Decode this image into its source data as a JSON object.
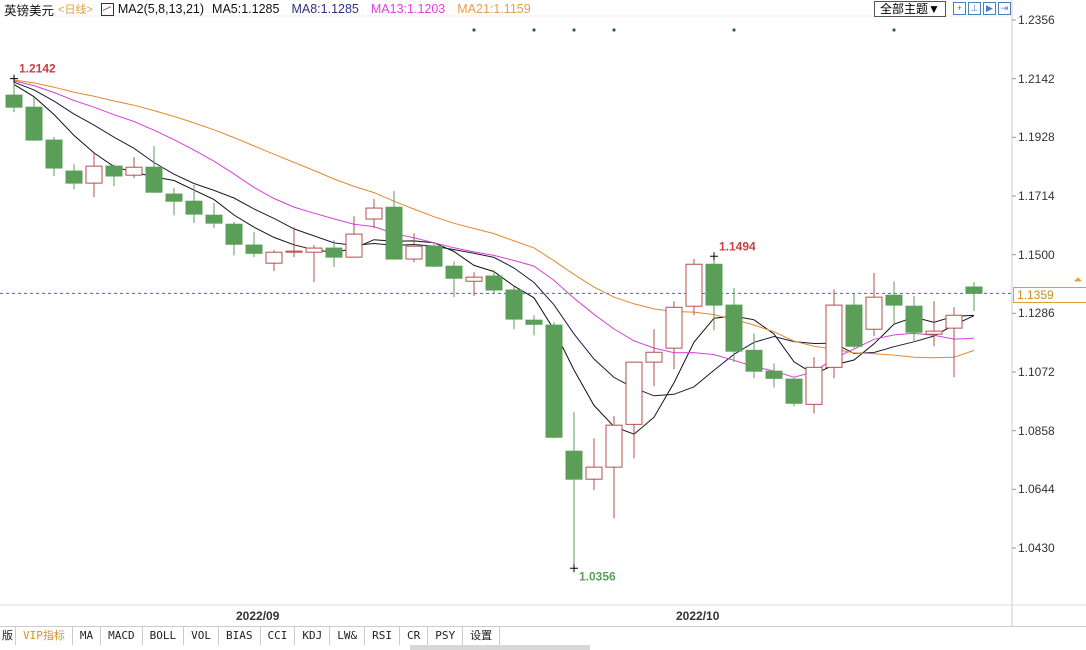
{
  "header": {
    "symbol": "英镑美元",
    "period": "<日线>",
    "indicator_name": "MA2(5,8,13,21)",
    "ma5": "MA5:1.1285",
    "ma8": "MA8:1.1285",
    "ma13": "MA13:1.1203",
    "ma21": "MA21:1.1159"
  },
  "toolbar": {
    "theme_select": "全部主题▼",
    "buttons": [
      "crosshair-icon",
      "zoom-in-icon",
      "step-icon",
      "jump-end-icon"
    ]
  },
  "colors": {
    "up": "#b0504c",
    "down": "#5a9e58",
    "ma5": "#111111",
    "ma8": "#1a1a40",
    "ma13": "#d840d8",
    "ma21": "#e08a30",
    "current_line": "#2a7a9a",
    "high_label": "#c84040",
    "low_label": "#5a9e58"
  },
  "y_axis": {
    "range": [
      1.043,
      1.2356
    ],
    "ticks": [
      "1.2356",
      "1.2142",
      "1.1928",
      "1.1714",
      "1.1500",
      "1.1286",
      "1.1072",
      "1.0858",
      "1.0644",
      "1.0430"
    ]
  },
  "current_price": "1.1359",
  "annotations": {
    "high_1": "1.2142",
    "high_2": "1.1494",
    "low_1": "1.0356"
  },
  "x_axis": [
    {
      "label": "2022/09",
      "index": 12
    },
    {
      "label": "2022/10",
      "index": 34
    }
  ],
  "event_markers": [
    23,
    26,
    28,
    30,
    36,
    44
  ],
  "chart_data": {
    "type": "candlestick",
    "title": "英镑美元 日线",
    "ma_periods": [
      5,
      8,
      13,
      21
    ],
    "ohlc": [
      [
        1.2082,
        1.2038,
        1.2142,
        1.202
      ],
      [
        1.2038,
        1.1918,
        1.2075,
        1.1915
      ],
      [
        1.1918,
        1.1816,
        1.1929,
        1.1787
      ],
      [
        1.1805,
        1.1761,
        1.183,
        1.1739
      ],
      [
        1.1761,
        1.1823,
        1.1871,
        1.171
      ],
      [
        1.1823,
        1.1787,
        1.183,
        1.175
      ],
      [
        1.179,
        1.1819,
        1.1856,
        1.1779
      ],
      [
        1.1819,
        1.1728,
        1.1896,
        1.1725
      ],
      [
        1.1721,
        1.1695,
        1.1743,
        1.1644
      ],
      [
        1.1695,
        1.1648,
        1.1754,
        1.1615
      ],
      [
        1.1644,
        1.1615,
        1.1688,
        1.1597
      ],
      [
        1.1611,
        1.1538,
        1.162,
        1.1498
      ],
      [
        1.1535,
        1.1505,
        1.1582,
        1.1491
      ],
      [
        1.1469,
        1.1509,
        1.1516,
        1.144
      ],
      [
        1.1509,
        1.1513,
        1.16,
        1.1491
      ],
      [
        1.1509,
        1.1524,
        1.1535,
        1.14
      ],
      [
        1.1524,
        1.1491,
        1.1553,
        1.1455
      ],
      [
        1.1491,
        1.1575,
        1.164,
        1.1491
      ],
      [
        1.163,
        1.167,
        1.1703,
        1.1597
      ],
      [
        1.1673,
        1.1484,
        1.1732,
        1.1484
      ],
      [
        1.1484,
        1.1531,
        1.1578,
        1.1473
      ],
      [
        1.1531,
        1.1458,
        1.154,
        1.1455
      ],
      [
        1.1458,
        1.1414,
        1.1476,
        1.1345
      ],
      [
        1.1403,
        1.1418,
        1.1436,
        1.1349
      ],
      [
        1.1422,
        1.1371,
        1.1443,
        1.1356
      ],
      [
        1.1371,
        1.1265,
        1.1385,
        1.1228
      ],
      [
        1.1261,
        1.1246,
        1.1279,
        1.1206
      ],
      [
        1.1243,
        1.0834,
        1.1254,
        1.083
      ],
      [
        1.0783,
        1.0681,
        1.0925,
        1.0356
      ],
      [
        1.0681,
        1.0725,
        1.083,
        1.0641
      ],
      [
        1.0725,
        1.0878,
        1.0911,
        1.0538
      ],
      [
        1.0881,
        1.1108,
        1.111,
        1.0757
      ],
      [
        1.1108,
        1.1144,
        1.1228,
        1.102
      ],
      [
        1.1159,
        1.1308,
        1.133,
        1.1082
      ],
      [
        1.1312,
        1.1465,
        1.1484,
        1.1279
      ],
      [
        1.1465,
        1.1316,
        1.1494,
        1.1224
      ],
      [
        1.1316,
        1.1148,
        1.1378,
        1.1108
      ],
      [
        1.1151,
        1.1075,
        1.1213,
        1.1049
      ],
      [
        1.1075,
        1.1049,
        1.1104,
        1.1016
      ],
      [
        1.1046,
        1.0958,
        1.1049,
        1.0947
      ],
      [
        1.0954,
        1.1089,
        1.1126,
        1.0921
      ],
      [
        1.1089,
        1.1316,
        1.1374,
        1.1049
      ],
      [
        1.1316,
        1.1166,
        1.1359,
        1.1159
      ],
      [
        1.1228,
        1.1345,
        1.1433,
        1.1203
      ],
      [
        1.1352,
        1.1316,
        1.1403,
        1.125
      ],
      [
        1.1312,
        1.1217,
        1.1349,
        1.1181
      ],
      [
        1.121,
        1.1221,
        1.133,
        1.1166
      ],
      [
        1.1232,
        1.1279,
        1.1308,
        1.1053
      ],
      [
        1.1382,
        1.1359,
        1.14,
        1.1294
      ]
    ]
  },
  "tabs": [
    "版",
    "VIP指标",
    "MA",
    "MACD",
    "BOLL",
    "VOL",
    "BIAS",
    "CCI",
    "KDJ",
    "LW&",
    "RSI",
    "CR",
    "PSY",
    "设置"
  ],
  "active_tab": 1
}
